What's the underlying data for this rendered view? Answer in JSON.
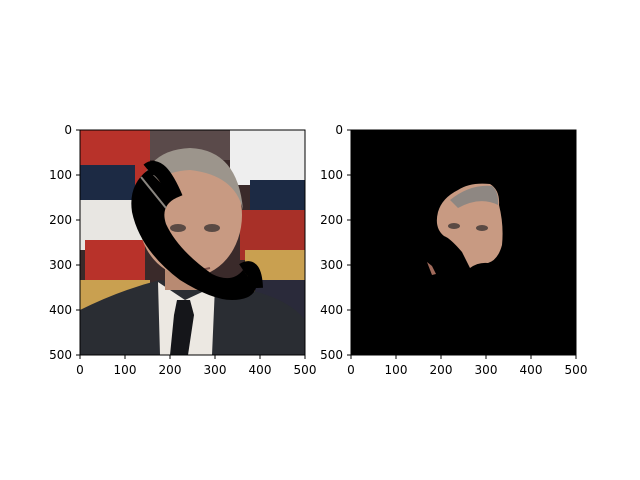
{
  "chart_data": [
    {
      "type": "image",
      "title": "",
      "xlabel": "",
      "ylabel": "",
      "xlim": [
        0,
        500
      ],
      "ylim": [
        500,
        0
      ],
      "x_ticks": [
        0,
        100,
        200,
        300,
        400,
        500
      ],
      "y_ticks": [
        0,
        100,
        200,
        300,
        400,
        500
      ],
      "x_tick_labels": [
        "0",
        "100",
        "200",
        "300",
        "400",
        "500"
      ],
      "y_tick_labels": [
        "0",
        "100",
        "200",
        "300",
        "400",
        "500"
      ],
      "image_content": "photo-with-black-telephone-handset-mask",
      "grid": false
    },
    {
      "type": "image",
      "title": "",
      "xlabel": "",
      "ylabel": "",
      "xlim": [
        0,
        500
      ],
      "ylim": [
        500,
        0
      ],
      "x_ticks": [
        0,
        100,
        200,
        300,
        400,
        500
      ],
      "y_ticks": [
        0,
        100,
        200,
        300,
        400,
        500
      ],
      "x_tick_labels": [
        "0",
        "100",
        "200",
        "300",
        "400",
        "500"
      ],
      "y_tick_labels": [
        "0",
        "100",
        "200",
        "300",
        "400",
        "500"
      ],
      "image_content": "segmented-face-region-on-black",
      "grid": false
    }
  ],
  "colors": {
    "mask": "#000000",
    "skin": "#c89a82",
    "hair": "#9c958c",
    "suit": "#2a2d33",
    "shirt": "#ece8e2",
    "tie": "#15161a",
    "bg_red": "#b8322a",
    "bg_navy": "#1c2a44",
    "bg_white": "#eeeeee",
    "bg_gold": "#c9a050"
  }
}
